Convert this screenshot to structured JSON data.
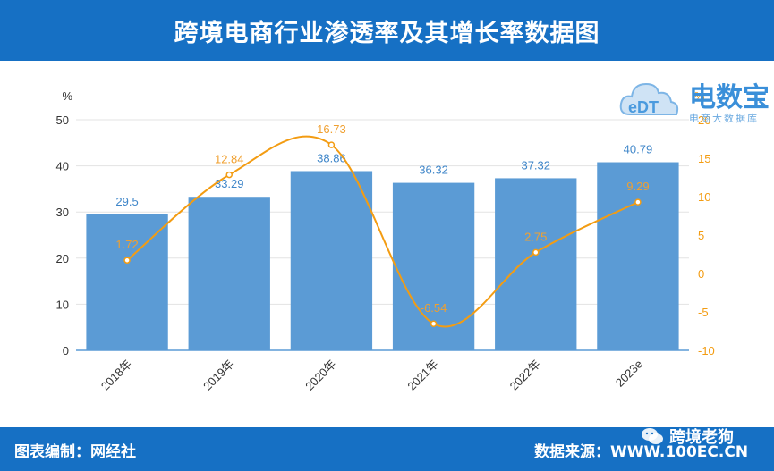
{
  "header": {
    "title": "跨境电商行业渗透率及其增长率数据图"
  },
  "footer": {
    "compiler": "图表编制：网经社",
    "source_label": "数据来源：",
    "source_url": "WWW.100EC.CN"
  },
  "watermark": {
    "brand": "电数宝",
    "sub": "电商大数据库",
    "wechat_label": "跨境老狗"
  },
  "chart_data": {
    "type": "bar",
    "categories": [
      "2018年",
      "2019年",
      "2020年",
      "2021年",
      "2022年",
      "2023e"
    ],
    "series": [
      {
        "type": "bar",
        "axis": "left",
        "values": [
          29.5,
          33.29,
          38.86,
          36.32,
          37.32,
          40.79
        ],
        "labels": [
          "29.5",
          "33.29",
          "38.86",
          "36.32",
          "37.32",
          "40.79"
        ],
        "color": "#5b9bd5"
      },
      {
        "type": "line",
        "axis": "right",
        "smooth": true,
        "values": [
          1.72,
          12.84,
          16.73,
          -6.54,
          2.75,
          9.29
        ],
        "labels": [
          "1.72",
          "12.84",
          "16.73",
          "-6.54",
          "2.75",
          "9.29"
        ],
        "color": "#f39c12"
      }
    ],
    "y_left": {
      "unit": "%",
      "range": [
        0,
        50
      ],
      "ticks": [
        "0",
        "10",
        "20",
        "30",
        "40",
        "50"
      ]
    },
    "y_right": {
      "unit": "%",
      "range": [
        -10,
        20
      ],
      "ticks": [
        "-10",
        "-5",
        "0",
        "5",
        "10",
        "15",
        "20"
      ]
    },
    "grid": true,
    "legend": "none"
  }
}
